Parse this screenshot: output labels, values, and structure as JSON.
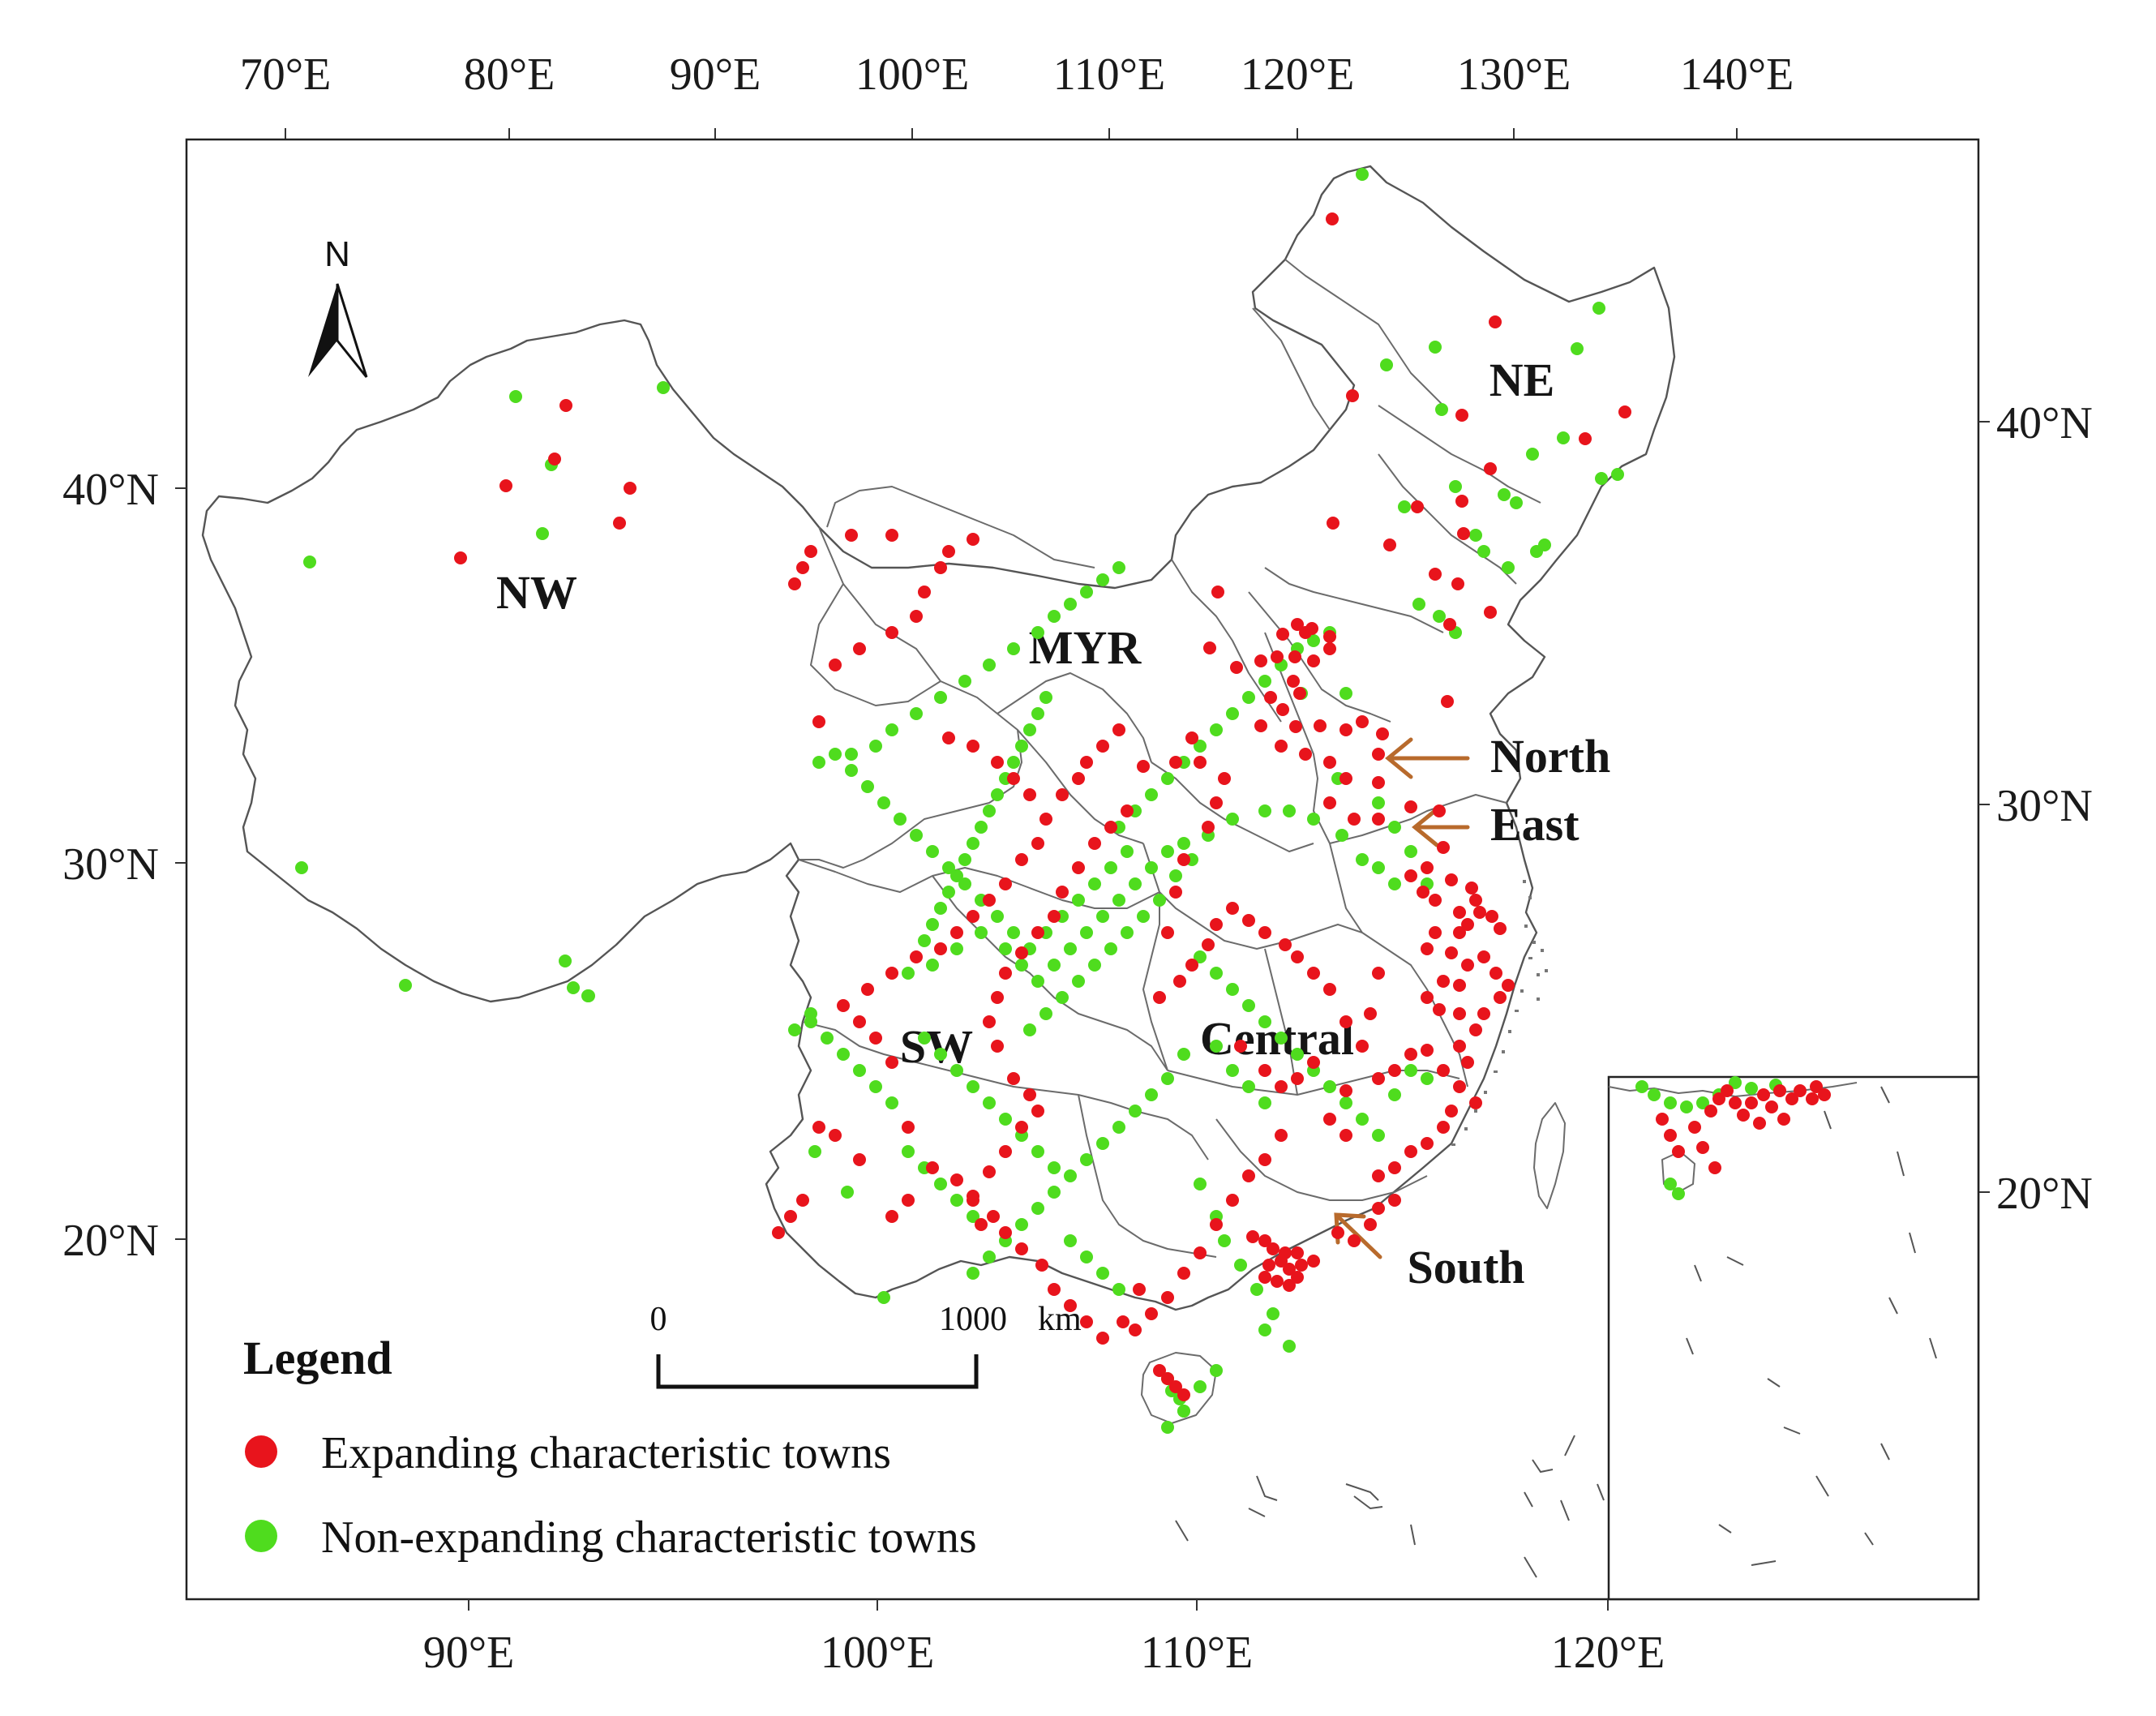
{
  "map": {
    "top_axis_ticks": [
      "70°E",
      "80°E",
      "90°E",
      "100°E",
      "110°E",
      "120°E",
      "130°E",
      "140°E"
    ],
    "bottom_axis_ticks": [
      "90°E",
      "100°E",
      "110°E",
      "120°E"
    ],
    "left_axis_ticks": [
      "40°N",
      "30°N",
      "20°N"
    ],
    "right_axis_ticks": [
      "40°N",
      "30°N",
      "20°N"
    ],
    "north_arrow_label": "N",
    "regions": {
      "nw": "NW",
      "myr": "MYR",
      "ne": "NE",
      "north": "North",
      "east": "East",
      "central": "Central",
      "sw": "SW",
      "south": "South"
    },
    "scale_bar": {
      "start_label": "0",
      "end_label": "1000",
      "unit": "km"
    },
    "legend": {
      "title": "Legend",
      "expanding_label": "Expanding characteristic towns",
      "non_expanding_label": "Non-expanding characteristic towns"
    },
    "colors": {
      "expanding": "#e8141c",
      "non_expanding": "#4fdc1e",
      "arrow": "#b86a2c",
      "boundary": "#6b6b6b"
    }
  }
}
